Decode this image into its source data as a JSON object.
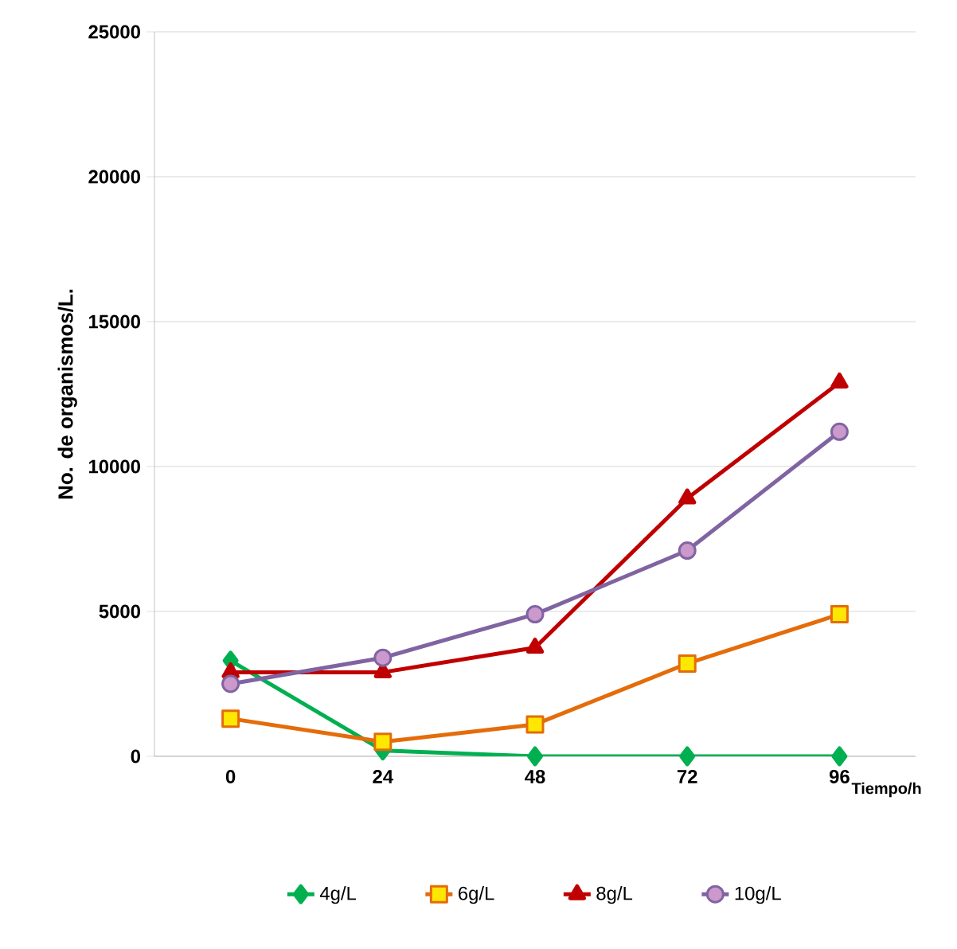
{
  "chart_data": {
    "type": "line",
    "xlabel": "Tiempo/h",
    "ylabel": "No.  de organismos/L.",
    "categories": [
      "0",
      "24",
      "48",
      "72",
      "96"
    ],
    "series": [
      {
        "name": "4g/L",
        "color": "#00b050",
        "marker": "diamond",
        "values": [
          3300,
          200,
          0,
          0,
          0
        ]
      },
      {
        "name": "6g/L",
        "color": "#e46c0a",
        "marker": "square",
        "values": [
          1300,
          500,
          1100,
          3200,
          4900
        ]
      },
      {
        "name": "8g/L",
        "color": "#c00000",
        "marker": "triangle",
        "values": [
          2900,
          2900,
          3750,
          8900,
          12900
        ]
      },
      {
        "name": "10g/L",
        "color": "#8064a2",
        "marker": "circle",
        "values": [
          2500,
          3400,
          4900,
          7100,
          11200
        ]
      }
    ],
    "ylim": [
      0,
      25000
    ],
    "yticks": [
      0,
      5000,
      10000,
      15000,
      20000,
      25000
    ],
    "grid": "y",
    "legend": "bottom"
  }
}
